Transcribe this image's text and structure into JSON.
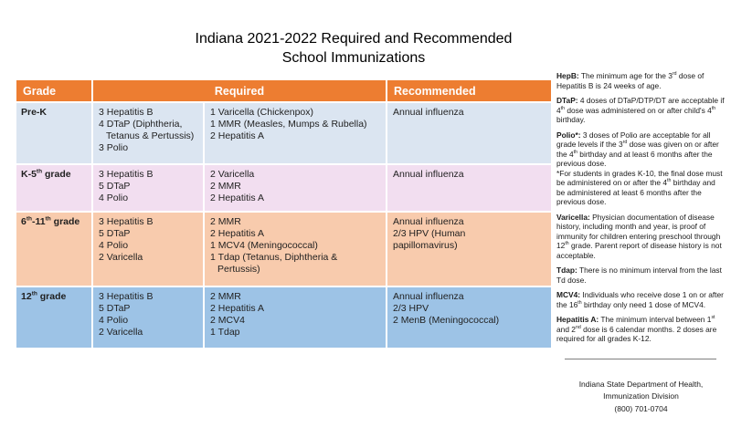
{
  "title": {
    "line1": "Indiana 2021-2022 Required and Recommended",
    "line2": "School Immunizations"
  },
  "colors": {
    "header_bg": "#ED7D31",
    "header_text": "#FFFFFF",
    "row_prek": "#DBE5F1",
    "row_k5": "#F2DEF0",
    "row_6_11": "#F8CBAD",
    "row_12": "#9DC3E6",
    "divider": "#7F7F7F"
  },
  "table": {
    "headers": {
      "grade": "Grade",
      "required": "Required",
      "recommended": "Recommended"
    },
    "rows": [
      {
        "grade": "Pre-K",
        "color_key": "row_prek",
        "required_a": [
          "3 Hepatitis B",
          "4 DTaP (Diphtheria, Tetanus & Pertussis)",
          "3 Polio"
        ],
        "required_b": [
          "1 Varicella (Chickenpox)",
          "1 MMR (Measles, Mumps & Rubella)",
          "2 Hepatitis A"
        ],
        "recommended": [
          "Annual influenza"
        ]
      },
      {
        "grade": "K-5^th^ grade",
        "color_key": "row_k5",
        "required_a": [
          "3 Hepatitis B",
          "5 DTaP",
          "4 Polio"
        ],
        "required_b": [
          "2 Varicella",
          "2 MMR",
          "2 Hepatitis A"
        ],
        "recommended": [
          "Annual influenza"
        ]
      },
      {
        "grade": "6^th^-11^th^ grade",
        "color_key": "row_6_11",
        "required_a": [
          "3 Hepatitis B",
          "5 DTaP",
          "4 Polio",
          "2 Varicella"
        ],
        "required_b": [
          "2 MMR",
          "2 Hepatitis A",
          "1 MCV4 (Meningococcal)",
          "1 Tdap (Tetanus, Diphtheria & Pertussis)"
        ],
        "recommended": [
          "Annual influenza",
          "2/3 HPV (Human papillomavirus)"
        ]
      },
      {
        "grade": "12^th^ grade",
        "color_key": "row_12",
        "required_a": [
          "3 Hepatitis B",
          "5 DTaP",
          "4 Polio",
          "2 Varicella"
        ],
        "required_b": [
          "2 MMR",
          "2 Hepatitis A",
          "2 MCV4",
          "1 Tdap"
        ],
        "recommended": [
          "Annual influenza",
          "2/3 HPV",
          "2 MenB (Meningococcal)"
        ]
      }
    ]
  },
  "notes": [
    {
      "term": "HepB:",
      "text": "The minimum age for the 3^rd^ dose of Hepatitis B is 24 weeks of age."
    },
    {
      "term": "DTaP:",
      "text": "4 doses of DTaP/DTP/DT are acceptable if 4^th^ dose was administered on or after child's 4^th^ birthday."
    },
    {
      "term": "Polio*:",
      "text": "3 doses of Polio are acceptable for all grade levels if the 3^rd^ dose was given on or after the 4^th^ birthday and at least 6 months after the previous dose.\n*For students in grades K-10, the final dose must be administered on or after the 4^th^ birthday and be administered at least 6 months after the previous dose."
    },
    {
      "term": "Varicella:",
      "text": "Physician documentation of disease history, including month and year, is proof of immunity for children entering preschool through 12^th^ grade. Parent report of disease history is not acceptable."
    },
    {
      "term": "Tdap:",
      "text": "There is no minimum interval from the last Td dose."
    },
    {
      "term": "MCV4:",
      "text": "Individuals who receive dose 1 on or after the 16^th^ birthday only need 1 dose of MCV4."
    },
    {
      "term": "Hepatitis A:",
      "text": "The minimum interval between 1^st^ and 2^nd^ dose is 6 calendar months. 2 doses are required for all grades K-12."
    }
  ],
  "footer": {
    "line1": "Indiana State Department of Health,",
    "line2": "Immunization Division",
    "line3": "(800) 701-0704"
  }
}
